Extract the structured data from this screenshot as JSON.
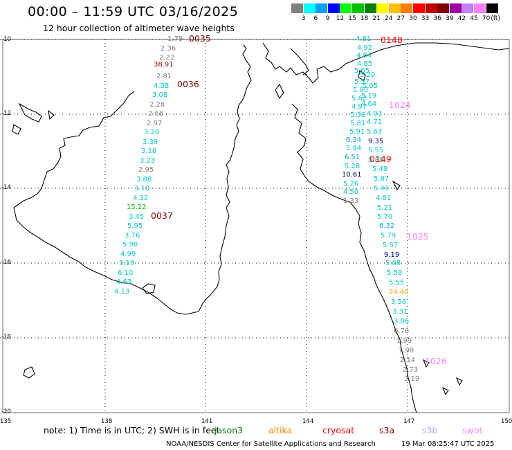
{
  "title": "00:00 – 11:59 UTC 03/16/2025",
  "subtitle": "12 hour collection of altimeter wave heights",
  "scale": {
    "colors": [
      "#808080",
      "#00ffff",
      "#00a0ff",
      "#0000ff",
      "#00ff00",
      "#00c000",
      "#008000",
      "#ffff00",
      "#ffc000",
      "#ff8000",
      "#ff0000",
      "#c00000",
      "#800000",
      "#a000a0",
      "#c080ff",
      "#ff80ff",
      "#000000"
    ],
    "labels": [
      "3",
      "6",
      "9",
      "12",
      "15",
      "18",
      "21",
      "24",
      "27",
      "30",
      "33",
      "36",
      "39",
      "42",
      "45",
      "70"
    ],
    "unit": "(ft)"
  },
  "axes": {
    "lat_labels": [
      "-10",
      "-12",
      "-14",
      "-16",
      "-18",
      "-20"
    ],
    "lon_labels": [
      "135",
      "138",
      "141",
      "144",
      "147",
      "150"
    ]
  },
  "tracks": [
    {
      "cycle": "0035",
      "color": "#800000"
    },
    {
      "cycle": "0036",
      "color": "#800000"
    },
    {
      "cycle": "0037",
      "color": "#800000"
    },
    {
      "cycle": "0148",
      "color": "#ff0000"
    },
    {
      "cycle": "0149",
      "color": "#ff0000"
    },
    {
      "cycle": "1024",
      "color": "#ff80ff"
    },
    {
      "cycle": "1025",
      "color": "#ff80ff"
    },
    {
      "cycle": "1026",
      "color": "#ff80ff"
    }
  ],
  "wave_values_left": [
    {
      "v": "1.79",
      "c": "#808080"
    },
    {
      "v": "2.36",
      "c": "#808080"
    },
    {
      "v": "2.22",
      "c": "#808080"
    },
    {
      "v": "38.91",
      "c": "#800000"
    },
    {
      "v": "2.81",
      "c": "#808080"
    },
    {
      "v": "4.38",
      "c": "#00c8c8"
    },
    {
      "v": "3.08",
      "c": "#00c8c8"
    },
    {
      "v": "2.28",
      "c": "#808080"
    },
    {
      "v": "2.66",
      "c": "#808080"
    },
    {
      "v": "2.97",
      "c": "#808080"
    },
    {
      "v": "3.20",
      "c": "#00c8c8"
    },
    {
      "v": "3.39",
      "c": "#00c8c8"
    },
    {
      "v": "3.16",
      "c": "#00c8c8"
    },
    {
      "v": "3.23",
      "c": "#00c8c8"
    },
    {
      "v": "2.95",
      "c": "#808080"
    },
    {
      "v": "3.88",
      "c": "#00c8c8"
    },
    {
      "v": "3.10",
      "c": "#00c8c8"
    },
    {
      "v": "4.32",
      "c": "#00c8c8"
    },
    {
      "v": "15.22",
      "c": "#00c000"
    },
    {
      "v": "3.45",
      "c": "#00c8c8"
    },
    {
      "v": "5.95",
      "c": "#00c8c8"
    },
    {
      "v": "3.76",
      "c": "#00c8c8"
    },
    {
      "v": "5.90",
      "c": "#00c8c8"
    },
    {
      "v": "4.99",
      "c": "#00c8c8"
    },
    {
      "v": "5.19",
      "c": "#00c8c8"
    },
    {
      "v": "6.10",
      "c": "#00c8c8"
    },
    {
      "v": "4.63",
      "c": "#00c8c8"
    },
    {
      "v": "4.13",
      "c": "#00c8c8"
    }
  ],
  "wave_values_right": [
    {
      "v": "4.81",
      "c": "#00c8c8"
    },
    {
      "v": "4.92",
      "c": "#00c8c8"
    },
    {
      "v": "4.84",
      "c": "#00c8c8"
    },
    {
      "v": "4.85",
      "c": "#00c8c8"
    },
    {
      "v": "5.65",
      "c": "#00c8c8"
    },
    {
      "v": "5.20",
      "c": "#00c8c8"
    },
    {
      "v": "5.57",
      "c": "#00c8c8"
    },
    {
      "v": "5.05",
      "c": "#00c8c8"
    },
    {
      "v": "5.90",
      "c": "#00c8c8"
    },
    {
      "v": "5.19",
      "c": "#00c8c8"
    },
    {
      "v": "5.62",
      "c": "#00c8c8"
    },
    {
      "v": "4.64",
      "c": "#00c8c8"
    },
    {
      "v": "4.97",
      "c": "#00c8c8"
    },
    {
      "v": "4.93",
      "c": "#00c8c8"
    },
    {
      "v": "5.36",
      "c": "#00c8c8"
    },
    {
      "v": "5.81",
      "c": "#00c8c8"
    },
    {
      "v": "4.71",
      "c": "#00c8c8"
    },
    {
      "v": "5.91",
      "c": "#00c8c8"
    },
    {
      "v": "5.63",
      "c": "#00c8c8"
    },
    {
      "v": "6.34",
      "c": "#00a0ff"
    },
    {
      "v": "9.35",
      "c": "#000080"
    },
    {
      "v": "5.94",
      "c": "#00c8c8"
    },
    {
      "v": "5.55",
      "c": "#00c8c8"
    },
    {
      "v": "6.51",
      "c": "#00a0ff"
    },
    {
      "v": "5.80",
      "c": "#00c8c8"
    },
    {
      "v": "5.28",
      "c": "#00c8c8"
    },
    {
      "v": "5.48",
      "c": "#00c8c8"
    },
    {
      "v": "10.61",
      "c": "#000080"
    },
    {
      "v": "5.87",
      "c": "#00c8c8"
    },
    {
      "v": "5.26",
      "c": "#00c8c8"
    },
    {
      "v": "5.49",
      "c": "#00c8c8"
    },
    {
      "v": "4.50",
      "c": "#00c8c8"
    },
    {
      "v": "1.33",
      "c": "#808080"
    },
    {
      "v": "4.81",
      "c": "#00c8c8"
    },
    {
      "v": "5.21",
      "c": "#00c8c8"
    },
    {
      "v": "5.70",
      "c": "#00c8c8"
    },
    {
      "v": "6.32",
      "c": "#00a0ff"
    },
    {
      "v": "5.79",
      "c": "#00c8c8"
    },
    {
      "v": "5.57",
      "c": "#00c8c8"
    },
    {
      "v": "9.19",
      "c": "#0000c0"
    },
    {
      "v": "5.08",
      "c": "#00c8c8"
    },
    {
      "v": "5.58",
      "c": "#00c8c8"
    },
    {
      "v": "5.55",
      "c": "#00c8c8"
    },
    {
      "v": "24.40",
      "c": "#ffa000"
    },
    {
      "v": "3.56",
      "c": "#00c8c8"
    },
    {
      "v": "3.31",
      "c": "#00c8c8"
    },
    {
      "v": "3.06",
      "c": "#00c8c8"
    },
    {
      "v": "0.76",
      "c": "#808080"
    },
    {
      "v": "1.99",
      "c": "#808080"
    },
    {
      "v": "1.98",
      "c": "#808080"
    },
    {
      "v": "2.14",
      "c": "#808080"
    },
    {
      "v": "2.73",
      "c": "#808080"
    },
    {
      "v": "3.19",
      "c": "#808080"
    }
  ],
  "footer": {
    "note": "note: 1) Time is in UTC; 2) SWH is in feet",
    "satellites": [
      {
        "name": "jason3",
        "color": "#008000"
      },
      {
        "name": "altika",
        "color": "#ff8000"
      },
      {
        "name": "cryosat",
        "color": "#ff0000"
      },
      {
        "name": "s3a",
        "color": "#800000"
      },
      {
        "name": "s3b",
        "color": "#c0a0ff"
      },
      {
        "name": "swot",
        "color": "#ff80ff"
      }
    ],
    "credit": "NOAA/NESDIS Center for Satellite Applications and Research",
    "timestamp": "19 Mar 08:25:47 UTC 2025"
  }
}
